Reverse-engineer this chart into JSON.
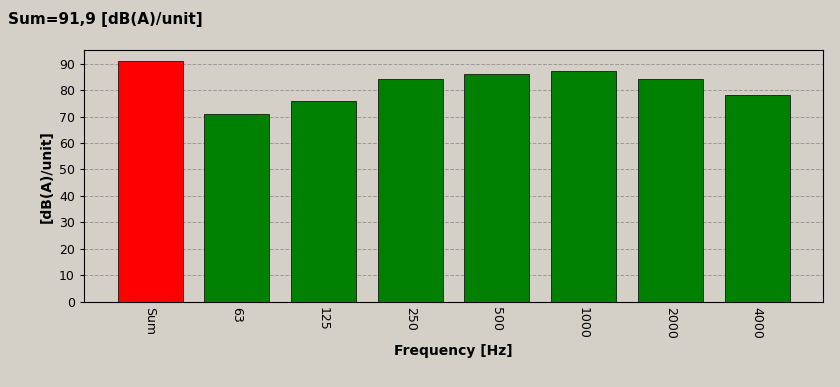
{
  "categories": [
    "Sum",
    "63",
    "125",
    "250",
    "500",
    "1000",
    "2000",
    "4000"
  ],
  "values": [
    91,
    71,
    76,
    84,
    86,
    87,
    84,
    78
  ],
  "bar_colors": [
    "#ff0000",
    "#008000",
    "#008000",
    "#008000",
    "#008000",
    "#008000",
    "#008000",
    "#008000"
  ],
  "title": "Sum=91,9 [dB(A)/unit]",
  "xlabel": "Frequency [Hz]",
  "ylabel": "[dB(A)/unit]",
  "ylim": [
    0,
    95
  ],
  "yticks": [
    0,
    10,
    20,
    30,
    40,
    50,
    60,
    70,
    80,
    90
  ],
  "background_color": "#d4d0c8",
  "plot_bg_color": "#d4d0c8",
  "grid_color": "#999999",
  "title_fontsize": 11,
  "axis_label_fontsize": 10,
  "tick_fontsize": 9
}
